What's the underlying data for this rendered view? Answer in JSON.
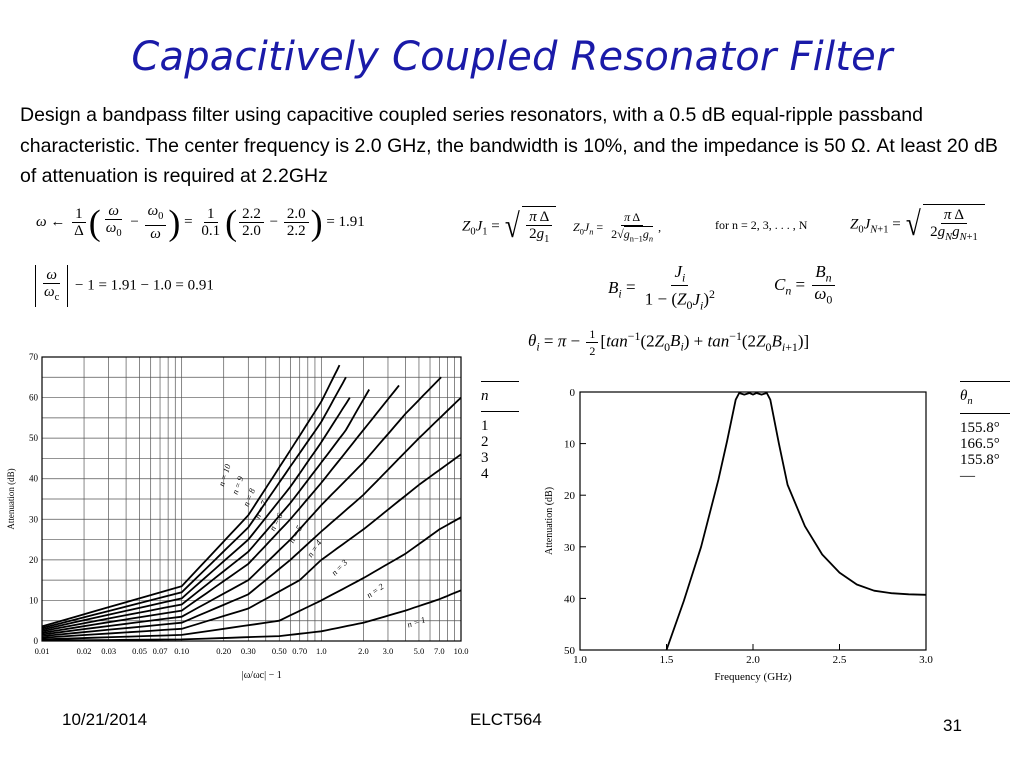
{
  "slide": {
    "title": "Capacitively Coupled Resonator Filter",
    "problem": "Design a bandpass filter using capacitive coupled series resonators, with a 0.5 dB equal-ripple passband characteristic. The center frequency is 2.0 GHz, the bandwidth is 10%, and the impedance is 50 Ω. At least 20 dB of attenuation is required at 2.2GHz",
    "footer": {
      "date": "10/21/2014",
      "course": "ELCT564",
      "page": "31"
    }
  },
  "equations": {
    "omega_result": "= 1.91",
    "normalized_result": "− 1 = 1.91 − 1.0 = 0.91",
    "for_n": "for n = 2, 3, . . . , N"
  },
  "table_left": {
    "header": "n",
    "rows": [
      "1",
      "2",
      "3",
      "4"
    ]
  },
  "table_right": {
    "header": "θn",
    "rows": [
      "155.8°",
      "166.5°",
      "155.8°",
      "—"
    ]
  },
  "chart_data": [
    {
      "type": "line",
      "title": "",
      "xlabel": "|ω/ωc| − 1",
      "ylabel": "Attenuation (dB)",
      "x_scale": "log",
      "xlim": [
        0.01,
        10.0
      ],
      "ylim": [
        0,
        70
      ],
      "x_ticks": [
        "0.01",
        "0.02",
        "0.03",
        "0.05",
        "0.07",
        "0.10",
        "0.20",
        "0.30",
        "0.50",
        "0.70",
        "1.0",
        "2.0",
        "3.0",
        "5.0",
        "7.0",
        "10.0"
      ],
      "y_ticks": [
        "0",
        "10",
        "20",
        "30",
        "40",
        "50",
        "60",
        "70"
      ],
      "grid": true,
      "series": [
        {
          "name": "n = 1",
          "x": [
            0.01,
            0.1,
            0.5,
            1,
            2,
            4,
            7,
            10
          ],
          "y": [
            0.1,
            0.4,
            1.2,
            2.4,
            4.5,
            7.5,
            10.3,
            12.5
          ]
        },
        {
          "name": "n = 2",
          "x": [
            0.01,
            0.1,
            0.5,
            1,
            2,
            4,
            7,
            10
          ],
          "y": [
            0.4,
            1.5,
            5,
            10,
            15.5,
            21.5,
            27.5,
            30.5
          ]
        },
        {
          "name": "n = 3",
          "x": [
            0.01,
            0.1,
            0.3,
            0.7,
            1,
            2,
            5,
            10
          ],
          "y": [
            0.8,
            3,
            8,
            15,
            20,
            27.5,
            38.5,
            46
          ]
        },
        {
          "name": "n = 4",
          "x": [
            0.01,
            0.1,
            0.3,
            0.6,
            1,
            2,
            5,
            10
          ],
          "y": [
            1.2,
            4.5,
            11.5,
            20,
            27,
            36,
            50,
            60
          ]
        },
        {
          "name": "n = 5",
          "x": [
            0.01,
            0.1,
            0.3,
            0.6,
            1,
            2,
            4,
            7.2
          ],
          "y": [
            1.6,
            6,
            15,
            25,
            33.5,
            44,
            56,
            65
          ]
        },
        {
          "name": "n = 6",
          "x": [
            0.01,
            0.1,
            0.3,
            0.6,
            1,
            2,
            3.6
          ],
          "y": [
            2,
            7.5,
            19,
            30,
            39,
            52,
            63
          ]
        },
        {
          "name": "n = 7",
          "x": [
            0.01,
            0.1,
            0.3,
            0.6,
            1,
            1.5,
            2.2
          ],
          "y": [
            2.4,
            9,
            22,
            34,
            44,
            52,
            62
          ]
        },
        {
          "name": "n = 8",
          "x": [
            0.01,
            0.1,
            0.3,
            0.6,
            1,
            1.6
          ],
          "y": [
            2.8,
            10.5,
            25,
            38,
            49,
            60
          ]
        },
        {
          "name": "n = 9",
          "x": [
            0.01,
            0.1,
            0.3,
            0.6,
            1,
            1.5
          ],
          "y": [
            3.2,
            12,
            28,
            43,
            54,
            65
          ]
        },
        {
          "name": "n = 10",
          "x": [
            0.01,
            0.1,
            0.3,
            0.6,
            1,
            1.35
          ],
          "y": [
            3.6,
            13.5,
            31,
            47,
            59,
            68
          ]
        }
      ]
    },
    {
      "type": "line",
      "title": "",
      "xlabel": "Frequency (GHz)",
      "ylabel": "Attenuation (dB)",
      "xlim": [
        1.0,
        3.0
      ],
      "ylim": [
        0,
        50
      ],
      "y_inverted": true,
      "x_ticks": [
        "1.0",
        "1.5",
        "2.0",
        "2.5",
        "3.0"
      ],
      "y_ticks": [
        "0",
        "10",
        "20",
        "30",
        "40",
        "50"
      ],
      "grid": false,
      "series": [
        {
          "name": "",
          "x": [
            1.5,
            1.6,
            1.7,
            1.8,
            1.85,
            1.9,
            1.92,
            1.95,
            1.98,
            2.0,
            2.02,
            2.05,
            2.08,
            2.1,
            2.15,
            2.2,
            2.3,
            2.4,
            2.5,
            2.6,
            2.7,
            2.8,
            2.9,
            3.0
          ],
          "y": [
            50,
            40.5,
            30,
            17,
            9.5,
            1.5,
            0.2,
            0.5,
            0.2,
            0.5,
            0.2,
            0.5,
            0.2,
            1.5,
            10,
            18,
            26,
            31.5,
            35,
            37.3,
            38.5,
            39,
            39.2,
            39.3
          ]
        }
      ]
    }
  ]
}
